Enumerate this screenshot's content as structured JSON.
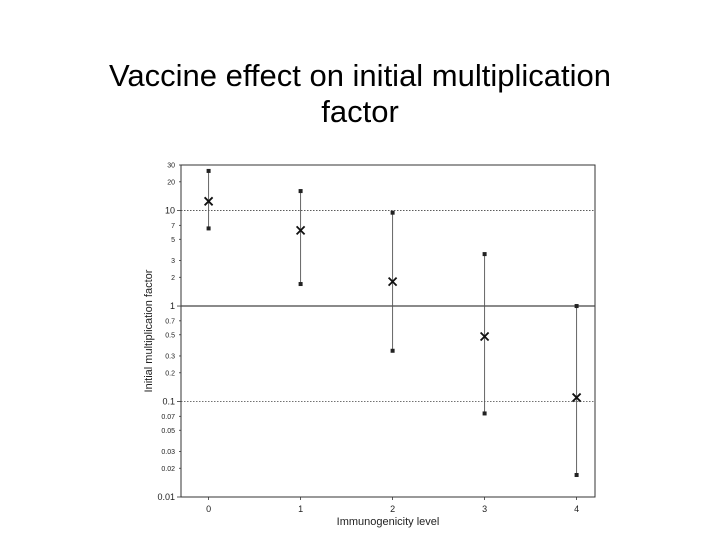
{
  "slide": {
    "title_line1": "Vaccine effect on initial multiplication",
    "title_line2": "factor"
  },
  "chart_data": {
    "type": "scatter",
    "title": "Vaccine effect on initial multiplication factor",
    "xlabel": "Immunogenicity level",
    "ylabel": "Initial multiplication factor",
    "yscale": "log",
    "ylim": [
      0.01,
      30
    ],
    "xlim": [
      -0.3,
      4.2
    ],
    "x_ticks": [
      "0",
      "1",
      "2",
      "3",
      "4"
    ],
    "y_ticks": [
      {
        "value": 30,
        "label": "30"
      },
      {
        "value": 20,
        "label": "20"
      },
      {
        "value": 10,
        "label": "10"
      },
      {
        "value": 7,
        "label": "7"
      },
      {
        "value": 5,
        "label": "5"
      },
      {
        "value": 3,
        "label": "3"
      },
      {
        "value": 2,
        "label": "2"
      },
      {
        "value": 1,
        "label": "1"
      },
      {
        "value": 0.7,
        "label": "0.7"
      },
      {
        "value": 0.5,
        "label": "0.5"
      },
      {
        "value": 0.3,
        "label": "0.3"
      },
      {
        "value": 0.2,
        "label": "0.2"
      },
      {
        "value": 0.1,
        "label": "0.1"
      },
      {
        "value": 0.07,
        "label": "0.07"
      },
      {
        "value": 0.05,
        "label": "0.05"
      },
      {
        "value": 0.03,
        "label": "0.03"
      },
      {
        "value": 0.02,
        "label": "0.02"
      },
      {
        "value": 0.01,
        "label": "0.01"
      }
    ],
    "major_y_ticks": [
      10,
      1,
      0.1,
      0.01
    ],
    "reference_lines": [
      {
        "y": 10,
        "style": "dotted"
      },
      {
        "y": 1,
        "style": "solid"
      },
      {
        "y": 0.1,
        "style": "dotted"
      }
    ],
    "points": [
      {
        "x": 0,
        "estimate": 12.5,
        "lower": 6.5,
        "upper": 26
      },
      {
        "x": 1,
        "estimate": 6.2,
        "lower": 1.7,
        "upper": 16
      },
      {
        "x": 2,
        "estimate": 1.8,
        "lower": 0.34,
        "upper": 9.5
      },
      {
        "x": 3,
        "estimate": 0.48,
        "lower": 0.075,
        "upper": 3.5
      },
      {
        "x": 4,
        "estimate": 0.11,
        "lower": 0.017,
        "upper": 1.0
      }
    ],
    "marker": "x",
    "grid": false
  }
}
